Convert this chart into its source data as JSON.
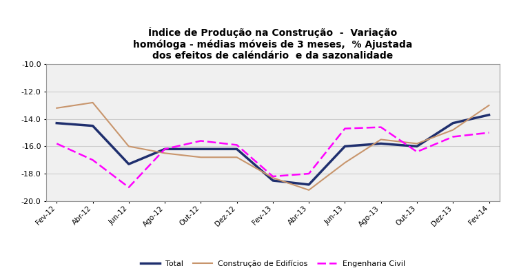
{
  "title_line1": "Índice de Produção na Construção  -  Variação",
  "title_line2": "homóloga - médias móveis de 3 meses,  % Ajustada",
  "title_line3": "dos efeitos de caléndário  e da sazonalidade",
  "x_labels": [
    "Fev-12",
    "Abr-12",
    "Jun-12",
    "Ago-12",
    "Out-12",
    "Dez-12",
    "Fev-13",
    "Abr-13",
    "Jun-13",
    "Ago-13",
    "Out-13",
    "Dez-13",
    "Fev-14"
  ],
  "total": [
    -14.3,
    -14.5,
    -17.3,
    -16.2,
    -16.2,
    -16.2,
    -18.5,
    -18.8,
    -16.0,
    -15.8,
    -16.0,
    -14.3,
    -13.7
  ],
  "construcao": [
    -13.2,
    -12.8,
    -16.0,
    -16.5,
    -16.8,
    -16.8,
    -18.3,
    -19.2,
    -17.2,
    -15.5,
    -15.8,
    -14.8,
    -13.0
  ],
  "engenharia": [
    -15.8,
    -17.0,
    -19.0,
    -16.2,
    -15.6,
    -15.9,
    -18.2,
    -18.0,
    -14.7,
    -14.6,
    -16.4,
    -15.3,
    -15.0
  ],
  "total_color": "#1f2f6e",
  "construcao_color": "#c8956c",
  "engenharia_color": "#ff00ff",
  "ylim_min": -20.0,
  "ylim_max": -10.0,
  "yticks": [
    -10.0,
    -12.0,
    -14.0,
    -16.0,
    -18.0,
    -20.0
  ],
  "bg_color": "#ffffff",
  "plot_bg_color": "#f0f0f0",
  "grid_color": "#cccccc",
  "legend_total": "Total",
  "legend_construcao": "Construção de Edifícios",
  "legend_engenharia": "Engenharia Civil"
}
